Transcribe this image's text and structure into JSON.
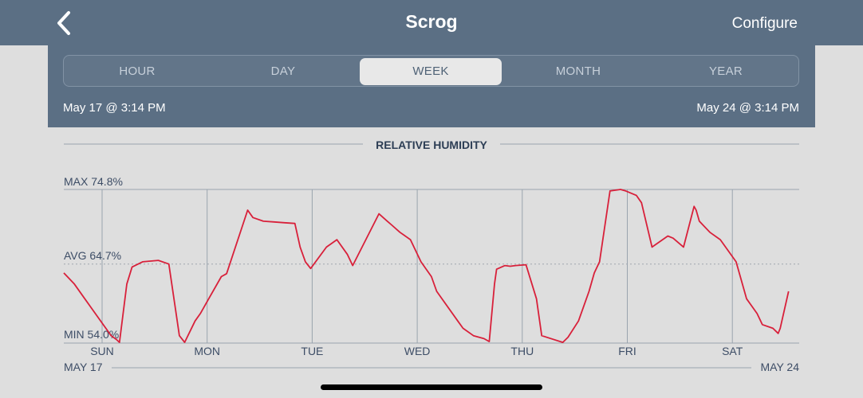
{
  "nav": {
    "title": "Scrog",
    "configure_label": "Configure",
    "back_icon": "chevron-left-icon"
  },
  "tabs": [
    {
      "label": "HOUR",
      "active": false
    },
    {
      "label": "DAY",
      "active": false
    },
    {
      "label": "WEEK",
      "active": true
    },
    {
      "label": "MONTH",
      "active": false
    },
    {
      "label": "YEAR",
      "active": false
    }
  ],
  "range": {
    "start": "May 17 @ 3:14 PM",
    "end": "May 24 @ 3:14 PM"
  },
  "chart_data": {
    "type": "line",
    "title": "RELATIVE HUMIDITY",
    "max_label": "MAX 74.8%",
    "avg_label": "AVG 64.7%",
    "min_label": "MIN 54.0%",
    "ylim": [
      54.0,
      74.8
    ],
    "avg": 64.7,
    "day_ticks": [
      "SUN",
      "MON",
      "TUE",
      "WED",
      "THU",
      "FRI",
      "SAT"
    ],
    "start_date_label": "MAY 17",
    "end_date_label": "MAY 24",
    "line_color": "#d8203a",
    "min_color": "#3aa84a",
    "series": [
      {
        "x": [
          0,
          0.1,
          0.2,
          0.3,
          0.4,
          0.45,
          0.5,
          0.53,
          0.6,
          0.65,
          0.75,
          0.9,
          1.0,
          1.1,
          1.15,
          1.25,
          1.3,
          1.38,
          1.5,
          1.55,
          1.75,
          1.8,
          1.9,
          2.0,
          2.1,
          2.2,
          2.25,
          2.3,
          2.35,
          2.5,
          2.6,
          2.7,
          2.75,
          3.0,
          3.08,
          3.12,
          3.2,
          3.3,
          3.4,
          3.5,
          3.55,
          3.75,
          3.8,
          3.9,
          4.0,
          4.05,
          4.1,
          4.12,
          4.2,
          4.25,
          4.3,
          4.4,
          4.5,
          4.55,
          4.75,
          4.8,
          4.9,
          5.0,
          5.05,
          5.1,
          5.2,
          5.3,
          5.35,
          5.45,
          5.5,
          5.6,
          5.7,
          5.75,
          5.8,
          5.9,
          6.0,
          6.02,
          6.05,
          6.15,
          6.25,
          6.4,
          6.5,
          6.6,
          6.65,
          6.75,
          6.78,
          6.8,
          6.82,
          6.9
        ],
        "values": [
          63.5,
          62,
          60,
          58,
          56,
          55,
          54.5,
          54.1,
          62,
          64.3,
          65,
          65.2,
          64.7,
          55,
          54.1,
          57,
          58,
          60,
          63,
          63.4,
          72,
          71,
          70.5,
          70.4,
          70.3,
          70.2,
          67,
          65,
          64.1,
          67,
          68,
          66,
          64.5,
          71.5,
          70.5,
          70,
          69,
          68,
          65,
          63,
          61,
          57,
          56,
          55,
          54.6,
          54.2,
          62,
          64,
          64.5,
          64.4,
          64.5,
          64.6,
          60,
          55,
          54.1,
          54.8,
          57,
          61,
          63.5,
          65,
          74.6,
          74.8,
          74.6,
          74,
          73,
          67,
          68,
          68.5,
          68.2,
          67,
          72.5,
          72,
          70.5,
          69,
          68,
          65,
          60,
          58,
          56.5,
          56,
          55.6,
          55.3,
          56,
          61
        ]
      }
    ]
  }
}
